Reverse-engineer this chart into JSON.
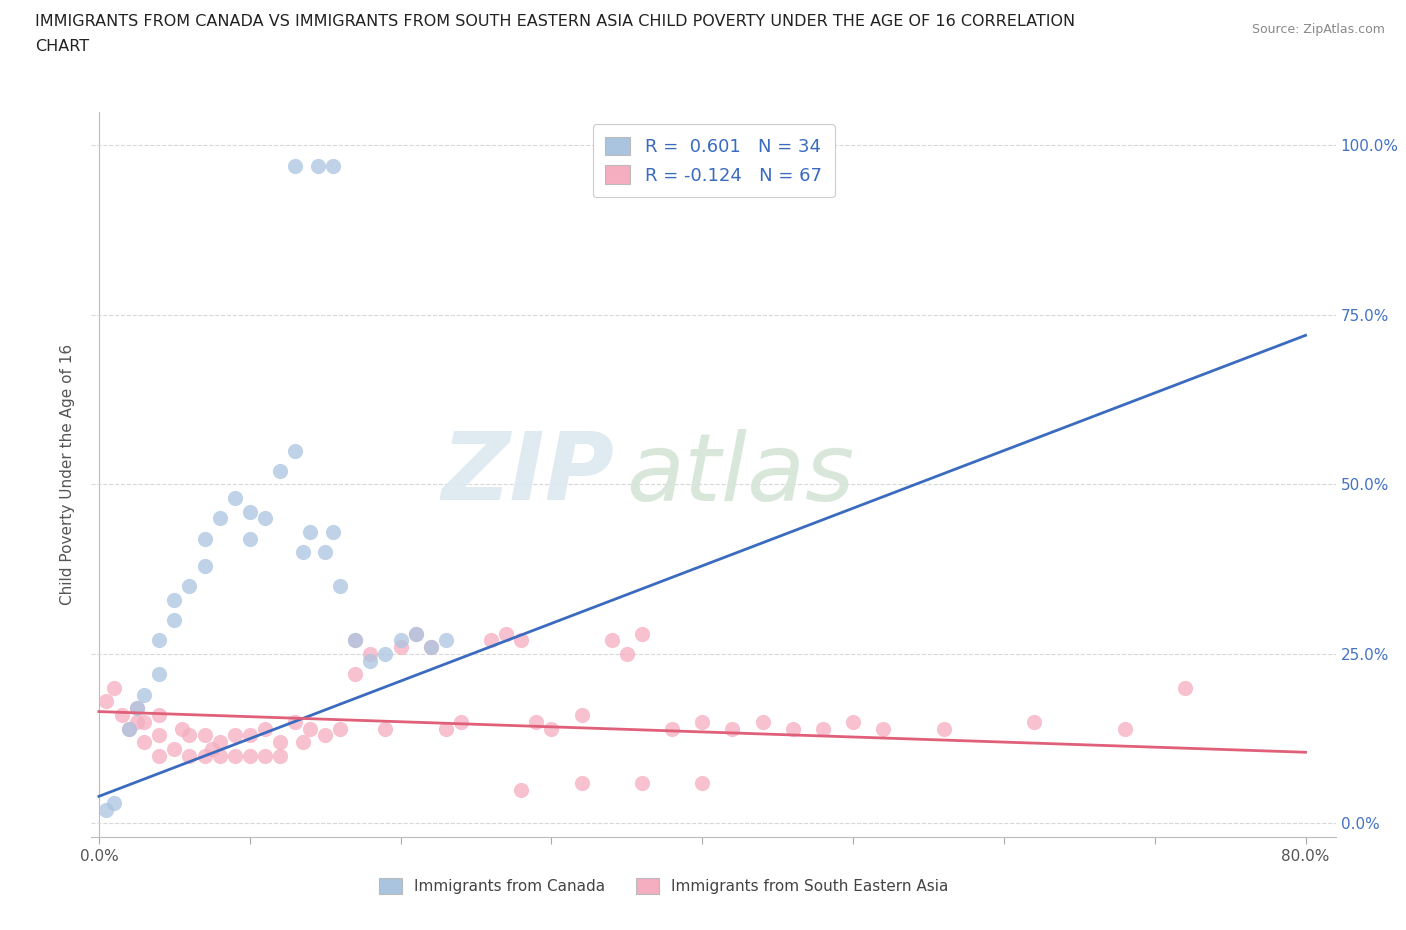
{
  "title_line1": "IMMIGRANTS FROM CANADA VS IMMIGRANTS FROM SOUTH EASTERN ASIA CHILD POVERTY UNDER THE AGE OF 16 CORRELATION",
  "title_line2": "CHART",
  "source": "Source: ZipAtlas.com",
  "ylabel": "Child Poverty Under the Age of 16",
  "ytick_labels": [
    "0.0%",
    "25.0%",
    "50.0%",
    "75.0%",
    "100.0%"
  ],
  "ytick_values": [
    0.0,
    0.25,
    0.5,
    0.75,
    1.0
  ],
  "xlim": [
    -0.005,
    0.82
  ],
  "ylim": [
    -0.02,
    1.05
  ],
  "canada_R": 0.601,
  "canada_N": 34,
  "sea_R": -0.124,
  "sea_N": 67,
  "canada_color": "#aac4e0",
  "canada_line_color": "#3a6bbf",
  "sea_color": "#f5adc0",
  "sea_line_color": "#e0607a",
  "legend_label_canada": "Immigrants from Canada",
  "legend_label_sea": "Immigrants from South Eastern Asia",
  "watermark_zip_color": "#e0e8f0",
  "watermark_atlas_color": "#dde8e0",
  "background_color": "#ffffff",
  "grid_color": "#d8d8d8",
  "title_color": "#222222",
  "source_color": "#888888",
  "axis_label_color": "#555555",
  "right_tick_color": "#4472c4",
  "canada_points_x": [
    0.005,
    0.01,
    0.02,
    0.025,
    0.03,
    0.04,
    0.04,
    0.05,
    0.05,
    0.06,
    0.07,
    0.07,
    0.08,
    0.09,
    0.1,
    0.1,
    0.11,
    0.12,
    0.13,
    0.135,
    0.14,
    0.15,
    0.155,
    0.16,
    0.17,
    0.18,
    0.19,
    0.2,
    0.21,
    0.22,
    0.23,
    0.13,
    0.145,
    0.155
  ],
  "canada_points_y": [
    0.02,
    0.03,
    0.14,
    0.17,
    0.19,
    0.22,
    0.27,
    0.3,
    0.33,
    0.35,
    0.38,
    0.42,
    0.45,
    0.48,
    0.42,
    0.46,
    0.45,
    0.52,
    0.55,
    0.4,
    0.43,
    0.4,
    0.43,
    0.35,
    0.27,
    0.24,
    0.25,
    0.27,
    0.28,
    0.26,
    0.27,
    0.97,
    0.97,
    0.97
  ],
  "canada_trend_x": [
    0.0,
    0.8
  ],
  "canada_trend_y": [
    0.04,
    0.72
  ],
  "sea_trend_x": [
    0.0,
    0.8
  ],
  "sea_trend_y": [
    0.165,
    0.105
  ],
  "sea_points_x": [
    0.005,
    0.01,
    0.015,
    0.02,
    0.025,
    0.025,
    0.03,
    0.03,
    0.04,
    0.04,
    0.04,
    0.05,
    0.055,
    0.06,
    0.06,
    0.07,
    0.07,
    0.075,
    0.08,
    0.08,
    0.09,
    0.09,
    0.1,
    0.1,
    0.11,
    0.11,
    0.12,
    0.12,
    0.13,
    0.135,
    0.14,
    0.15,
    0.16,
    0.17,
    0.17,
    0.18,
    0.19,
    0.2,
    0.21,
    0.22,
    0.23,
    0.24,
    0.26,
    0.27,
    0.28,
    0.29,
    0.3,
    0.32,
    0.34,
    0.35,
    0.36,
    0.38,
    0.4,
    0.42,
    0.44,
    0.46,
    0.48,
    0.5,
    0.52,
    0.56,
    0.62,
    0.68,
    0.32,
    0.36,
    0.4,
    0.72,
    0.28
  ],
  "sea_points_y": [
    0.18,
    0.2,
    0.16,
    0.14,
    0.15,
    0.17,
    0.12,
    0.15,
    0.1,
    0.13,
    0.16,
    0.11,
    0.14,
    0.1,
    0.13,
    0.1,
    0.13,
    0.11,
    0.1,
    0.12,
    0.1,
    0.13,
    0.1,
    0.13,
    0.1,
    0.14,
    0.1,
    0.12,
    0.15,
    0.12,
    0.14,
    0.13,
    0.14,
    0.22,
    0.27,
    0.25,
    0.14,
    0.26,
    0.28,
    0.26,
    0.14,
    0.15,
    0.27,
    0.28,
    0.27,
    0.15,
    0.14,
    0.16,
    0.27,
    0.25,
    0.28,
    0.14,
    0.15,
    0.14,
    0.15,
    0.14,
    0.14,
    0.15,
    0.14,
    0.14,
    0.15,
    0.14,
    0.06,
    0.06,
    0.06,
    0.2,
    0.05
  ]
}
